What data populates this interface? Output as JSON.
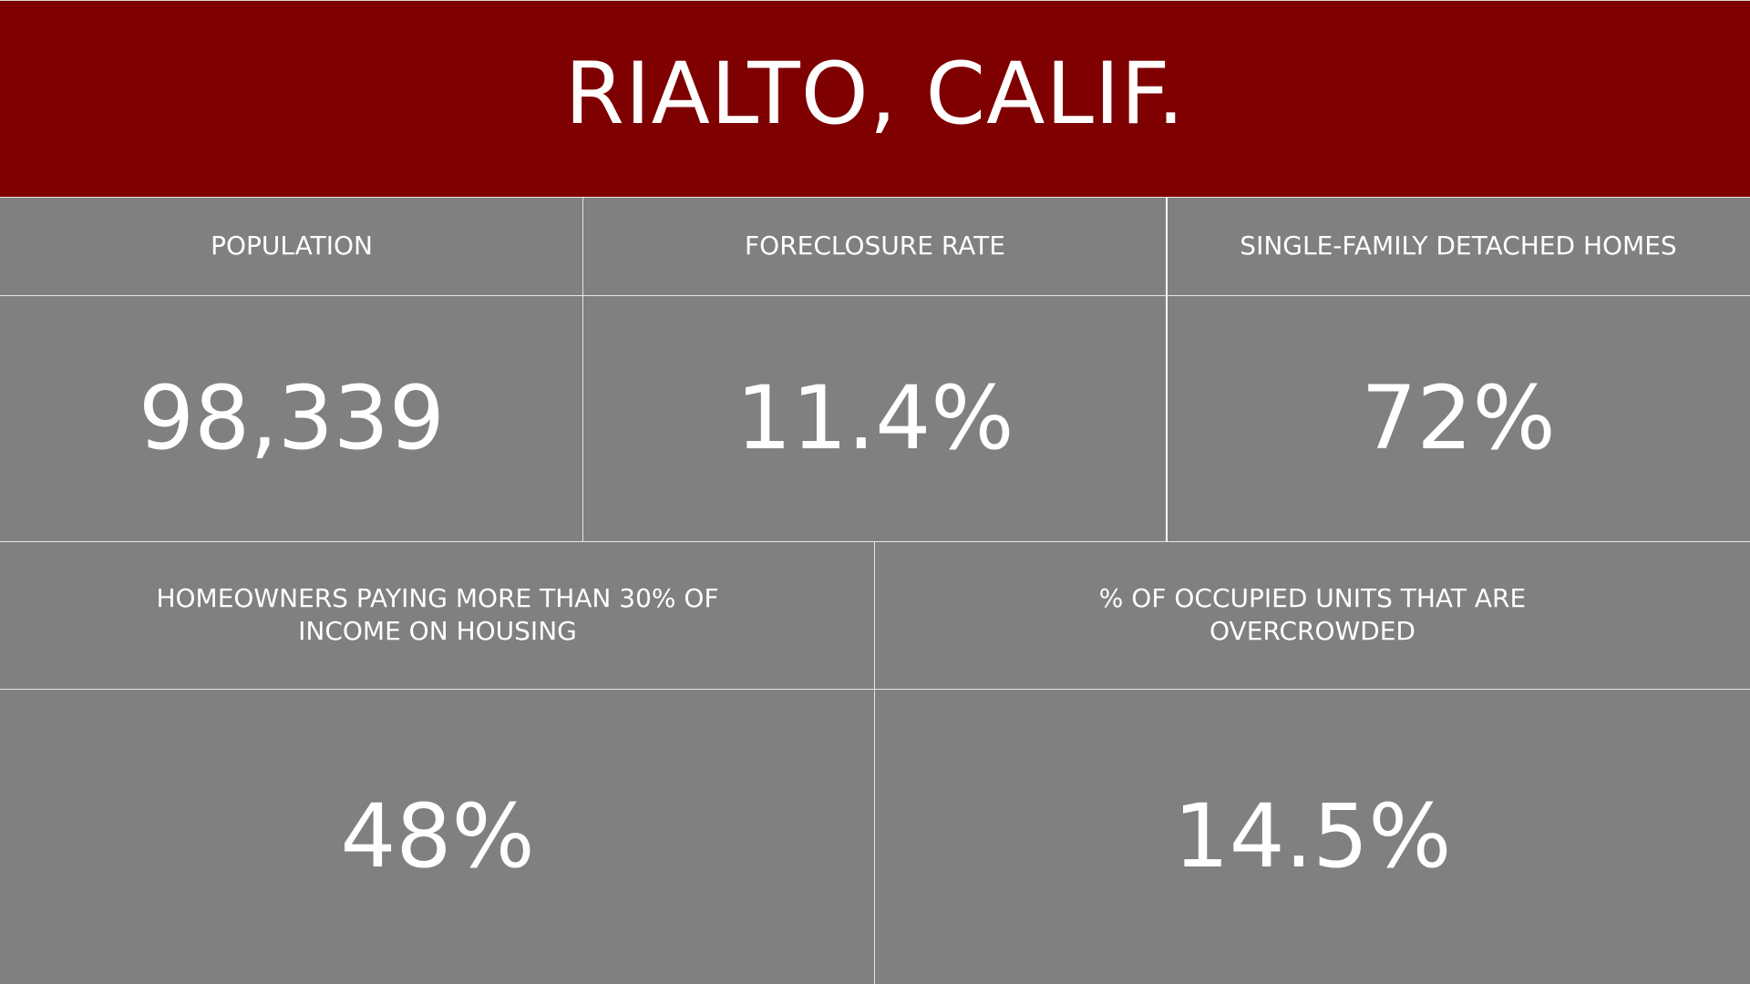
{
  "header": {
    "title": "RIALTO, CALIF.",
    "background_color": "#7f0000"
  },
  "panel_color": "#808080",
  "text_color": "#ffffff",
  "stats_row1": [
    {
      "label": "POPULATION",
      "value": "98,339"
    },
    {
      "label": "FORECLOSURE RATE",
      "value": "11.4%"
    },
    {
      "label": "SINGLE-FAMILY DETACHED HOMES",
      "value": "72%"
    }
  ],
  "stats_row2": [
    {
      "label": "HOMEOWNERS PAYING MORE THAN 30% OF INCOME ON HOUSING",
      "value": "48%"
    },
    {
      "label": "% OF OCCUPIED UNITS THAT ARE OVERCROWDED",
      "value": "14.5%"
    }
  ]
}
